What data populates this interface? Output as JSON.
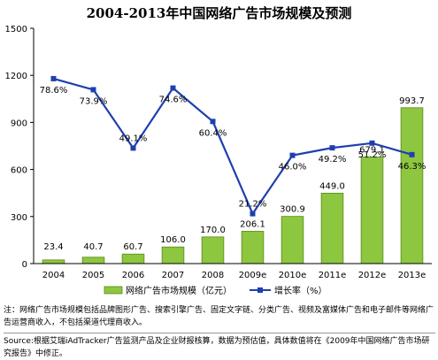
{
  "chart_data": {
    "type": "bar",
    "title": "2004-2013年中国网络广告市场规模及预测",
    "categories": [
      "2004",
      "2005",
      "2006",
      "2007",
      "2008",
      "2009e",
      "2010e",
      "2011e",
      "2012e",
      "2013e"
    ],
    "series": [
      {
        "name": "网络广告市场规模（亿元）",
        "type": "bar",
        "axis": "left",
        "values": [
          23.4,
          40.7,
          60.7,
          106.0,
          170.0,
          206.1,
          300.9,
          449.0,
          679.1,
          993.7
        ],
        "labels": [
          "23.4",
          "40.7",
          "60.7",
          "106.0",
          "170.0",
          "206.1",
          "300.9",
          "449.0",
          "679.1",
          "993.7"
        ],
        "color": "#8dc63f"
      },
      {
        "name": "增长率（%）",
        "type": "line",
        "axis": "right",
        "values": [
          78.6,
          73.9,
          49.1,
          74.6,
          60.4,
          21.2,
          46.0,
          49.2,
          51.2,
          46.3
        ],
        "labels": [
          "78.6%",
          "73.9%",
          "49.1%",
          "74.6%",
          "60.4%",
          "21.2%",
          "46.0%",
          "49.2%",
          "51.2%",
          "46.3%"
        ],
        "color": "#1f3fb0"
      }
    ],
    "yticks": [
      "0",
      "300",
      "600",
      "900",
      "1200",
      "1500"
    ],
    "ylim": [
      0,
      1500
    ],
    "rate_ylim": [
      0,
      100
    ],
    "grid": false,
    "legend": "bottom"
  },
  "note": "注：网络广告市场规模包括品牌图形广告、搜索引擎广告、固定文字链、分类广告、视频及富媒体广告和电子邮件等网络广告运营商收入，不包括渠道代理商收入。",
  "source": "Source:根据艾瑞iAdTracker广告监测产品及企业财报核算，数据为预估值，具体数值将在《2009年中国网络广告市场研究报告》中修正。",
  "colors": {
    "bar_border": "#5a8a1a",
    "axis": "#000000"
  }
}
